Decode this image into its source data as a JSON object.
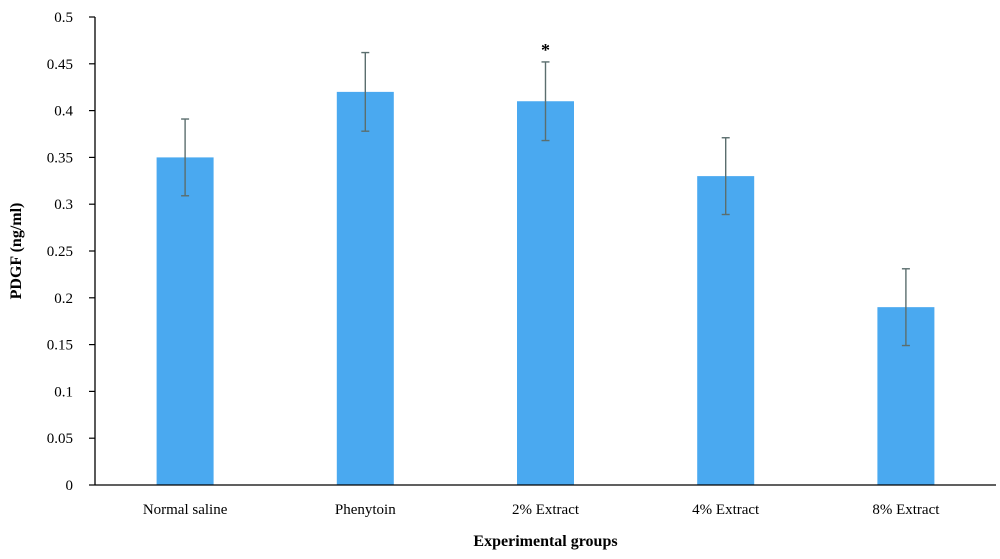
{
  "chart_data": {
    "type": "bar",
    "xlabel": "Experimental groups",
    "ylabel": "PDGF (ng/ml)",
    "ylim": [
      0,
      0.5
    ],
    "yticks": [
      "0",
      "0.05",
      "0.1",
      "0.15",
      "0.2",
      "0.25",
      "0.3",
      "0.35",
      "0.4",
      "0.45",
      "0.5"
    ],
    "categories": [
      "Normal saline",
      "Phenytoin",
      "2% Extract",
      "4% Extract",
      "8% Extract"
    ],
    "values": [
      0.35,
      0.42,
      0.41,
      0.33,
      0.19
    ],
    "error": [
      0.041,
      0.042,
      0.042,
      0.041,
      0.041
    ],
    "annotations": [
      {
        "category": "2% Extract",
        "text": "*"
      }
    ],
    "grid": false,
    "legend": "none",
    "colors": {
      "bar": "#4aa9f0",
      "errorbar": "#5b6e6e",
      "axis": "#000000"
    }
  }
}
